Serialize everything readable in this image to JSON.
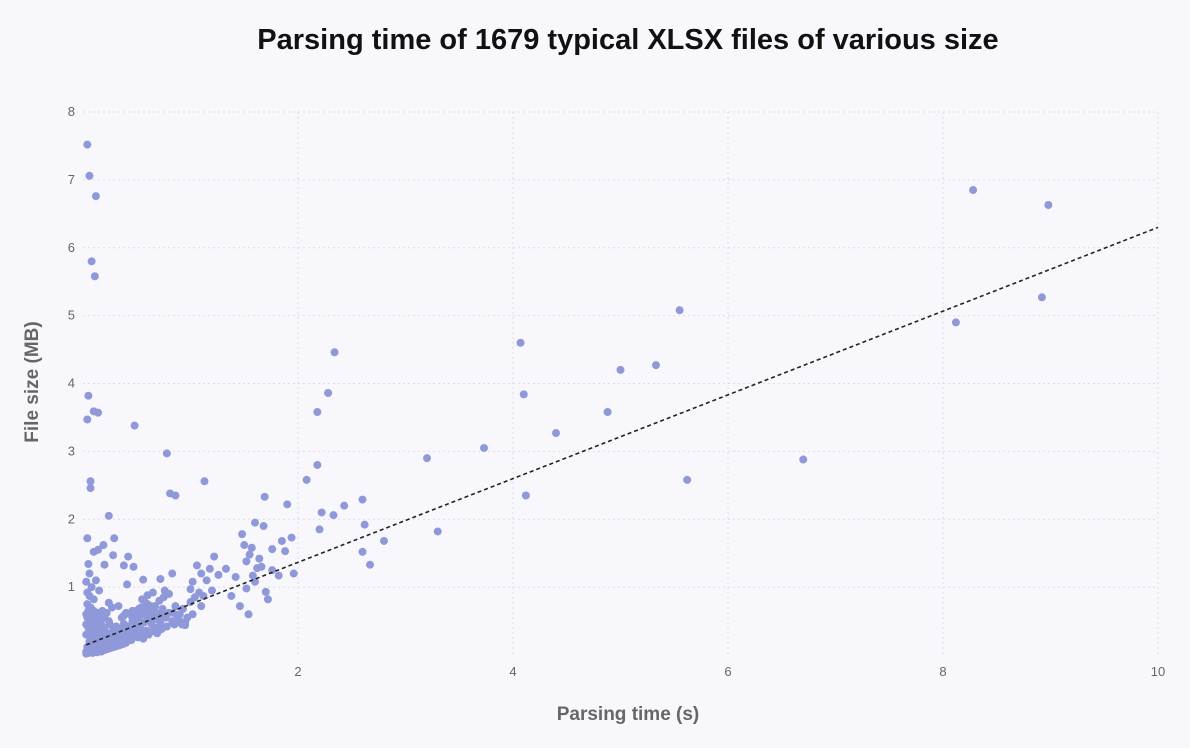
{
  "chart_data": {
    "type": "scatter",
    "title": "Parsing time of 1679 typical XLSX files of various size",
    "xlabel": "Parsing time (s)",
    "ylabel": "File size (MB)",
    "xlim": [
      0,
      10
    ],
    "ylim": [
      0,
      8
    ],
    "xticks": [
      2,
      4,
      6,
      8,
      10
    ],
    "yticks": [
      1,
      2,
      3,
      4,
      5,
      6,
      7,
      8
    ],
    "grid": true,
    "colors": {
      "points": "#8f99d9",
      "trendline": "#222222",
      "background": "#f8f8fc"
    },
    "trendline": {
      "style": "dashed",
      "x": [
        0.03,
        10
      ],
      "y": [
        0.15,
        6.3
      ]
    },
    "series": [
      {
        "points": [
          [
            0.04,
            7.52
          ],
          [
            0.06,
            7.06
          ],
          [
            0.12,
            6.76
          ],
          [
            0.08,
            5.8
          ],
          [
            0.11,
            5.58
          ],
          [
            0.05,
            3.82
          ],
          [
            0.04,
            3.47
          ],
          [
            0.1,
            3.59
          ],
          [
            0.14,
            3.57
          ],
          [
            0.48,
            3.38
          ],
          [
            0.78,
            2.97
          ],
          [
            0.07,
            2.56
          ],
          [
            0.07,
            2.46
          ],
          [
            0.81,
            2.38
          ],
          [
            0.86,
            2.35
          ],
          [
            1.13,
            2.56
          ],
          [
            0.04,
            1.72
          ],
          [
            0.24,
            2.05
          ],
          [
            0.29,
            1.72
          ],
          [
            0.1,
            1.52
          ],
          [
            0.14,
            1.55
          ],
          [
            0.19,
            1.62
          ],
          [
            0.28,
            1.47
          ],
          [
            0.42,
            1.45
          ],
          [
            0.38,
            1.32
          ],
          [
            0.47,
            1.3
          ],
          [
            0.41,
            1.04
          ],
          [
            0.56,
            1.11
          ],
          [
            0.06,
            1.2
          ],
          [
            0.05,
            1.34
          ],
          [
            0.2,
            1.33
          ],
          [
            0.72,
            1.12
          ],
          [
            0.83,
            1.2
          ],
          [
            0.12,
            1.1
          ],
          [
            0.03,
            1.08
          ],
          [
            0.08,
            1.0
          ],
          [
            0.15,
            0.95
          ],
          [
            0.04,
            0.92
          ],
          [
            0.06,
            0.87
          ],
          [
            0.1,
            0.82
          ],
          [
            0.24,
            0.77
          ],
          [
            0.27,
            0.7
          ],
          [
            0.33,
            0.72
          ],
          [
            0.38,
            0.58
          ],
          [
            0.46,
            0.65
          ],
          [
            0.55,
            0.7
          ],
          [
            0.58,
            0.77
          ],
          [
            0.63,
            0.72
          ],
          [
            0.67,
            0.58
          ],
          [
            0.7,
            0.52
          ],
          [
            0.76,
            0.95
          ],
          [
            0.8,
            0.9
          ],
          [
            0.84,
            0.62
          ],
          [
            0.88,
            0.58
          ],
          [
            0.92,
            0.45
          ],
          [
            0.95,
            0.48
          ],
          [
            1.0,
            0.97
          ],
          [
            1.02,
            1.08
          ],
          [
            1.06,
            1.32
          ],
          [
            1.1,
            1.2
          ],
          [
            1.12,
            0.87
          ],
          [
            1.15,
            1.1
          ],
          [
            1.18,
            1.27
          ],
          [
            1.2,
            0.95
          ],
          [
            1.22,
            1.45
          ],
          [
            1.26,
            1.18
          ],
          [
            1.33,
            1.27
          ],
          [
            1.38,
            0.87
          ],
          [
            1.42,
            1.15
          ],
          [
            1.46,
            0.72
          ],
          [
            1.48,
            1.78
          ],
          [
            1.5,
            1.62
          ],
          [
            1.52,
            1.38
          ],
          [
            1.55,
            1.48
          ],
          [
            1.57,
            1.58
          ],
          [
            1.58,
            1.17
          ],
          [
            1.6,
            1.95
          ],
          [
            1.6,
            1.08
          ],
          [
            1.62,
            1.28
          ],
          [
            1.64,
            1.42
          ],
          [
            1.66,
            1.3
          ],
          [
            1.68,
            1.9
          ],
          [
            1.7,
            0.93
          ],
          [
            1.72,
            0.82
          ],
          [
            1.76,
            1.56
          ],
          [
            1.76,
            1.25
          ],
          [
            1.82,
            1.17
          ],
          [
            1.85,
            1.68
          ],
          [
            1.88,
            1.53
          ],
          [
            1.9,
            2.22
          ],
          [
            1.94,
            1.73
          ],
          [
            1.96,
            1.2
          ],
          [
            1.69,
            2.33
          ],
          [
            1.54,
            0.6
          ],
          [
            1.52,
            0.98
          ],
          [
            2.08,
            2.58
          ],
          [
            2.18,
            2.8
          ],
          [
            2.22,
            2.1
          ],
          [
            2.2,
            1.85
          ],
          [
            2.18,
            3.58
          ],
          [
            2.28,
            3.86
          ],
          [
            2.34,
            4.46
          ],
          [
            2.33,
            2.06
          ],
          [
            2.43,
            2.2
          ],
          [
            2.6,
            2.29
          ],
          [
            2.6,
            1.52
          ],
          [
            2.62,
            1.92
          ],
          [
            2.67,
            1.33
          ],
          [
            2.8,
            1.68
          ],
          [
            3.2,
            2.9
          ],
          [
            3.3,
            1.82
          ],
          [
            3.73,
            3.05
          ],
          [
            4.07,
            4.6
          ],
          [
            4.1,
            3.84
          ],
          [
            4.12,
            2.35
          ],
          [
            4.4,
            3.27
          ],
          [
            4.88,
            3.58
          ],
          [
            5.0,
            4.2
          ],
          [
            5.33,
            4.27
          ],
          [
            5.55,
            5.08
          ],
          [
            5.62,
            2.58
          ],
          [
            6.7,
            2.88
          ],
          [
            8.12,
            4.9
          ],
          [
            8.28,
            6.85
          ],
          [
            8.92,
            5.27
          ],
          [
            8.98,
            6.63
          ],
          [
            0.03,
            0.05
          ],
          [
            0.04,
            0.12
          ],
          [
            0.05,
            0.08
          ],
          [
            0.06,
            0.2
          ],
          [
            0.07,
            0.15
          ],
          [
            0.08,
            0.06
          ],
          [
            0.09,
            0.25
          ],
          [
            0.1,
            0.1
          ],
          [
            0.11,
            0.18
          ],
          [
            0.12,
            0.3
          ],
          [
            0.13,
            0.08
          ],
          [
            0.14,
            0.22
          ],
          [
            0.15,
            0.14
          ],
          [
            0.16,
            0.35
          ],
          [
            0.17,
            0.12
          ],
          [
            0.18,
            0.28
          ],
          [
            0.19,
            0.18
          ],
          [
            0.2,
            0.4
          ],
          [
            0.21,
            0.22
          ],
          [
            0.22,
            0.15
          ],
          [
            0.23,
            0.32
          ],
          [
            0.24,
            0.2
          ],
          [
            0.25,
            0.45
          ],
          [
            0.26,
            0.27
          ],
          [
            0.27,
            0.18
          ],
          [
            0.28,
            0.36
          ],
          [
            0.3,
            0.25
          ],
          [
            0.31,
            0.42
          ],
          [
            0.32,
            0.3
          ],
          [
            0.33,
            0.2
          ],
          [
            0.35,
            0.38
          ],
          [
            0.36,
            0.28
          ],
          [
            0.38,
            0.46
          ],
          [
            0.39,
            0.33
          ],
          [
            0.41,
            0.25
          ],
          [
            0.42,
            0.42
          ],
          [
            0.44,
            0.35
          ],
          [
            0.46,
            0.5
          ],
          [
            0.47,
            0.38
          ],
          [
            0.49,
            0.3
          ],
          [
            0.5,
            0.45
          ],
          [
            0.52,
            0.55
          ],
          [
            0.53,
            0.4
          ],
          [
            0.55,
            0.6
          ],
          [
            0.57,
            0.48
          ],
          [
            0.58,
            0.35
          ],
          [
            0.6,
            0.52
          ],
          [
            0.62,
            0.62
          ],
          [
            0.64,
            0.45
          ],
          [
            0.66,
            0.55
          ],
          [
            0.68,
            0.4
          ],
          [
            0.7,
            0.6
          ],
          [
            0.72,
            0.48
          ],
          [
            0.74,
            0.68
          ],
          [
            0.77,
            0.55
          ],
          [
            0.8,
            0.62
          ],
          [
            0.83,
            0.5
          ],
          [
            0.86,
            0.72
          ],
          [
            0.9,
            0.6
          ],
          [
            0.93,
            0.68
          ],
          [
            0.97,
            0.55
          ],
          [
            1.0,
            0.78
          ],
          [
            1.04,
            0.85
          ],
          [
            1.08,
            0.92
          ],
          [
            0.03,
            0.3
          ],
          [
            0.03,
            0.45
          ],
          [
            0.03,
            0.6
          ],
          [
            0.04,
            0.75
          ],
          [
            0.04,
            0.55
          ],
          [
            0.05,
            0.4
          ],
          [
            0.05,
            0.65
          ],
          [
            0.06,
            0.5
          ],
          [
            0.06,
            0.35
          ],
          [
            0.07,
            0.7
          ],
          [
            0.07,
            0.45
          ],
          [
            0.08,
            0.58
          ],
          [
            0.09,
            0.4
          ],
          [
            0.1,
            0.65
          ],
          [
            0.1,
            0.48
          ],
          [
            0.11,
            0.35
          ],
          [
            0.12,
            0.55
          ],
          [
            0.13,
            0.42
          ],
          [
            0.14,
            0.62
          ],
          [
            0.15,
            0.48
          ],
          [
            0.16,
            0.58
          ],
          [
            0.17,
            0.45
          ],
          [
            0.18,
            0.65
          ],
          [
            0.2,
            0.55
          ],
          [
            0.22,
            0.62
          ],
          [
            0.24,
            0.5
          ],
          [
            0.03,
            0.02
          ],
          [
            0.05,
            0.03
          ],
          [
            0.07,
            0.04
          ],
          [
            0.09,
            0.03
          ],
          [
            0.11,
            0.05
          ],
          [
            0.13,
            0.04
          ],
          [
            0.15,
            0.06
          ],
          [
            0.17,
            0.05
          ],
          [
            0.19,
            0.07
          ],
          [
            0.21,
            0.08
          ],
          [
            0.23,
            0.09
          ],
          [
            0.25,
            0.1
          ],
          [
            0.27,
            0.11
          ],
          [
            0.29,
            0.12
          ],
          [
            0.31,
            0.13
          ],
          [
            0.33,
            0.14
          ],
          [
            0.35,
            0.15
          ],
          [
            0.37,
            0.16
          ],
          [
            0.06,
            0.1
          ],
          [
            0.08,
            0.14
          ],
          [
            0.1,
            0.16
          ],
          [
            0.12,
            0.13
          ],
          [
            0.14,
            0.18
          ],
          [
            0.16,
            0.2
          ],
          [
            0.18,
            0.1
          ],
          [
            0.2,
            0.12
          ],
          [
            0.22,
            0.26
          ],
          [
            0.26,
            0.16
          ],
          [
            0.28,
            0.2
          ],
          [
            0.3,
            0.14
          ],
          [
            0.34,
            0.18
          ],
          [
            0.37,
            0.22
          ],
          [
            0.4,
            0.18
          ],
          [
            0.43,
            0.28
          ],
          [
            0.45,
            0.22
          ],
          [
            0.48,
            0.32
          ],
          [
            0.51,
            0.26
          ],
          [
            0.54,
            0.3
          ],
          [
            0.56,
            0.24
          ],
          [
            0.59,
            0.36
          ],
          [
            0.61,
            0.3
          ],
          [
            0.65,
            0.35
          ],
          [
            0.69,
            0.32
          ],
          [
            0.73,
            0.38
          ],
          [
            0.78,
            0.42
          ],
          [
            0.85,
            0.45
          ],
          [
            0.9,
            0.5
          ],
          [
            0.95,
            0.44
          ],
          [
            1.02,
            0.6
          ],
          [
            1.1,
            0.72
          ],
          [
            0.36,
            0.55
          ],
          [
            0.4,
            0.62
          ],
          [
            0.45,
            0.58
          ],
          [
            0.5,
            0.65
          ],
          [
            0.54,
            0.7
          ],
          [
            0.6,
            0.75
          ],
          [
            0.63,
            0.68
          ],
          [
            0.67,
            0.72
          ],
          [
            0.71,
            0.8
          ],
          [
            0.75,
            0.85
          ],
          [
            0.55,
            0.82
          ],
          [
            0.6,
            0.88
          ],
          [
            0.65,
            0.92
          ],
          [
            0.48,
            0.6
          ],
          [
            0.52,
            0.68
          ],
          [
            0.58,
            0.66
          ],
          [
            0.62,
            0.58
          ],
          [
            0.68,
            0.62
          ],
          [
            0.73,
            0.57
          ],
          [
            0.77,
            0.6
          ]
        ]
      }
    ]
  }
}
